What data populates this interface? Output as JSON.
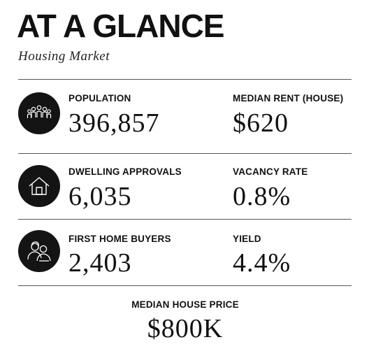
{
  "header": {
    "title": "AT A GLANCE",
    "subtitle": "Housing Market"
  },
  "stats": [
    {
      "label": "POPULATION",
      "value": "396,857",
      "icon": "people-group-icon"
    },
    {
      "label": "MEDIAN RENT (HOUSE)",
      "value": "$620"
    },
    {
      "label": "DWELLING APPROVALS",
      "value": "6,035",
      "icon": "house-icon"
    },
    {
      "label": "VACANCY RATE",
      "value": "0.8%"
    },
    {
      "label": "FIRST HOME BUYERS",
      "value": "2,403",
      "icon": "couple-icon"
    },
    {
      "label": "YIELD",
      "value": "4.4%"
    }
  ],
  "footer": {
    "label": "MEDIAN HOUSE PRICE",
    "value": "$800K"
  },
  "colors": {
    "text": "#111111",
    "icon_background": "#141414",
    "rule": "#555555"
  }
}
